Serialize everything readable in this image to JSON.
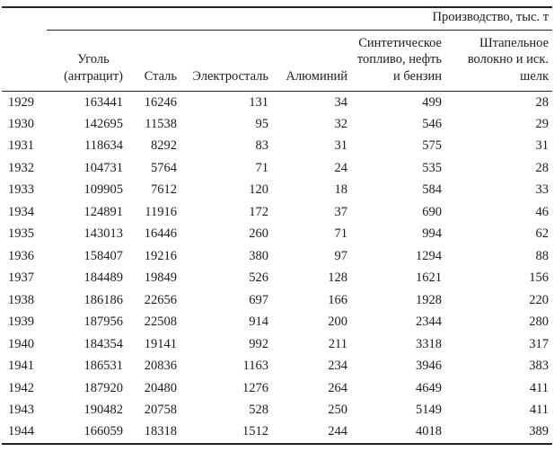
{
  "table": {
    "spanner_label": "Производство, тыс. т",
    "headers": [
      {
        "lines": [
          ""
        ]
      },
      {
        "lines": [
          "Уголь",
          "(антрацит)"
        ]
      },
      {
        "lines": [
          "Сталь"
        ]
      },
      {
        "lines": [
          "Электросталь"
        ]
      },
      {
        "lines": [
          "Алюминий"
        ]
      },
      {
        "lines": [
          "Синтетическое",
          "топливо, нефть",
          "и бензин"
        ]
      },
      {
        "lines": [
          "Штапельное",
          "волокно и иск.",
          "шелк"
        ]
      }
    ],
    "rows": [
      {
        "year": "1929",
        "values": [
          "163441",
          "16246",
          "131",
          "34",
          "499",
          "28"
        ]
      },
      {
        "year": "1930",
        "values": [
          "142695",
          "11538",
          "95",
          "32",
          "546",
          "29"
        ]
      },
      {
        "year": "1931",
        "values": [
          "118634",
          "8292",
          "83",
          "31",
          "575",
          "31"
        ]
      },
      {
        "year": "1932",
        "values": [
          "104731",
          "5764",
          "71",
          "24",
          "535",
          "28"
        ]
      },
      {
        "year": "1933",
        "values": [
          "109905",
          "7612",
          "120",
          "18",
          "584",
          "33"
        ]
      },
      {
        "year": "1934",
        "values": [
          "124891",
          "11916",
          "172",
          "37",
          "690",
          "46"
        ]
      },
      {
        "year": "1935",
        "values": [
          "143013",
          "16446",
          "260",
          "71",
          "994",
          "62"
        ]
      },
      {
        "year": "1936",
        "values": [
          "158407",
          "19216",
          "380",
          "97",
          "1294",
          "88"
        ]
      },
      {
        "year": "1937",
        "values": [
          "184489",
          "19849",
          "526",
          "128",
          "1621",
          "156"
        ]
      },
      {
        "year": "1938",
        "values": [
          "186186",
          "22656",
          "697",
          "166",
          "1928",
          "220"
        ]
      },
      {
        "year": "1939",
        "values": [
          "187956",
          "22508",
          "914",
          "200",
          "2344",
          "280"
        ]
      },
      {
        "year": "1940",
        "values": [
          "184354",
          "19141",
          "992",
          "211",
          "3318",
          "317"
        ]
      },
      {
        "year": "1941",
        "values": [
          "186531",
          "20836",
          "1163",
          "234",
          "3946",
          "383"
        ]
      },
      {
        "year": "1942",
        "values": [
          "187920",
          "20480",
          "1276",
          "264",
          "4649",
          "411"
        ]
      },
      {
        "year": "1943",
        "values": [
          "190482",
          "20758",
          "528",
          "250",
          "5149",
          "411"
        ]
      },
      {
        "year": "1944",
        "values": [
          "166059",
          "18318",
          "1512",
          "244",
          "4018",
          "389"
        ]
      }
    ],
    "text_color": "#1c1c1c",
    "rule_color": "#242424",
    "background_color": "#ffffff"
  }
}
